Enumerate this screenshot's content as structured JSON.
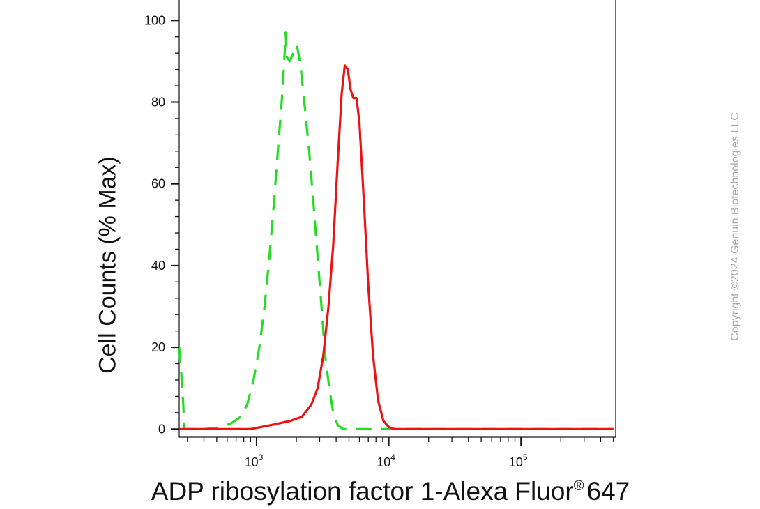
{
  "chart_data": {
    "type": "line",
    "xlabel": "ADP ribosylation factor 1-Alexa Fluor",
    "xlabel_suffix": "647",
    "xlabel_superscript": "®",
    "ylabel": "Cell Counts (% Max)",
    "x_scale": "log",
    "xlim": [
      260,
      520000
    ],
    "ylim": [
      -2,
      105
    ],
    "y_ticks": [
      0,
      20,
      40,
      60,
      80,
      100
    ],
    "x_ticks": [
      {
        "base": "10",
        "exp": "3",
        "value": 1000
      },
      {
        "base": "10",
        "exp": "4",
        "value": 10000
      },
      {
        "base": "10",
        "exp": "5",
        "value": 100000
      }
    ],
    "grid": false,
    "legend": "none",
    "series": [
      {
        "style": "dashed",
        "color": "#22dd22",
        "points": [
          [
            260,
            20
          ],
          [
            275,
            10
          ],
          [
            285,
            0
          ],
          [
            400,
            0
          ],
          [
            550,
            0.5
          ],
          [
            650,
            1.5
          ],
          [
            760,
            3
          ],
          [
            850,
            6
          ],
          [
            950,
            12
          ],
          [
            1050,
            20
          ],
          [
            1150,
            30
          ],
          [
            1250,
            42
          ],
          [
            1350,
            55
          ],
          [
            1450,
            68
          ],
          [
            1550,
            80
          ],
          [
            1620,
            90
          ],
          [
            1660,
            97
          ],
          [
            1700,
            91
          ],
          [
            1780,
            90
          ],
          [
            1900,
            92
          ],
          [
            2020,
            94
          ],
          [
            2150,
            89
          ],
          [
            2300,
            80
          ],
          [
            2500,
            68
          ],
          [
            2700,
            55
          ],
          [
            2900,
            42
          ],
          [
            3100,
            30
          ],
          [
            3300,
            18
          ],
          [
            3550,
            10
          ],
          [
            3800,
            4
          ],
          [
            4100,
            1
          ],
          [
            4500,
            0
          ],
          [
            500000,
            0
          ]
        ]
      },
      {
        "style": "solid",
        "color": "#ee1111",
        "points": [
          [
            260,
            0
          ],
          [
            900,
            0
          ],
          [
            1300,
            1
          ],
          [
            1800,
            2
          ],
          [
            2200,
            3
          ],
          [
            2600,
            6
          ],
          [
            2900,
            10
          ],
          [
            3200,
            18
          ],
          [
            3500,
            30
          ],
          [
            3800,
            45
          ],
          [
            4100,
            65
          ],
          [
            4400,
            82
          ],
          [
            4650,
            89
          ],
          [
            4900,
            88
          ],
          [
            5150,
            83
          ],
          [
            5400,
            81
          ],
          [
            5700,
            81
          ],
          [
            6000,
            75
          ],
          [
            6500,
            55
          ],
          [
            7000,
            35
          ],
          [
            7600,
            18
          ],
          [
            8300,
            7
          ],
          [
            9100,
            2
          ],
          [
            10000,
            0.5
          ],
          [
            11000,
            0
          ],
          [
            500000,
            0
          ]
        ]
      }
    ]
  },
  "watermark": "Copyright ©2024 Genuin Biotechnologies LLC"
}
